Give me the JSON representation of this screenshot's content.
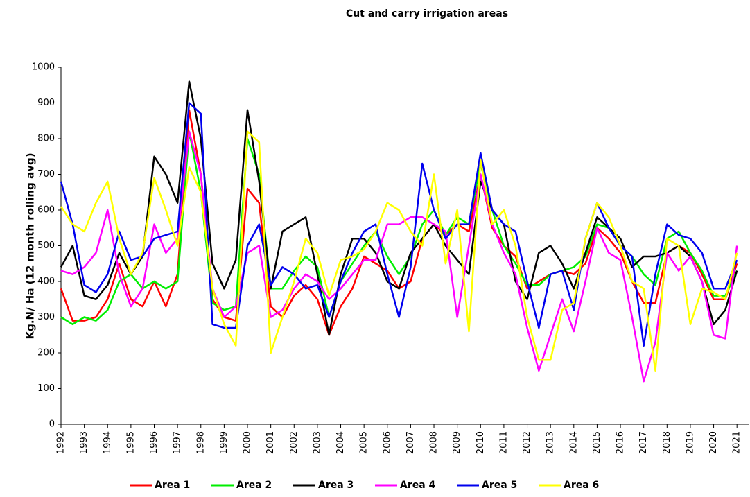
{
  "chart_data": {
    "type": "line",
    "title": "Cut and  carry irrigation areas",
    "y_label": "Kg.N/ Ha (12 month rolling avg)",
    "x": [
      1992,
      1992.5,
      1993,
      1993.5,
      1994,
      1994.5,
      1995,
      1995.5,
      1996,
      1996.5,
      1997,
      1997.5,
      1998,
      1998.5,
      1999,
      1999.5,
      2000,
      2000.5,
      2001,
      2001.5,
      2002,
      2002.5,
      2003,
      2003.5,
      2004,
      2004.5,
      2005,
      2005.5,
      2006,
      2006.5,
      2007,
      2007.5,
      2008,
      2008.5,
      2009,
      2009.5,
      2010,
      2010.5,
      2011,
      2011.5,
      2012,
      2012.5,
      2013,
      2013.5,
      2014,
      2014.5,
      2015,
      2015.5,
      2016,
      2016.5,
      2017,
      2017.5,
      2018,
      2018.5,
      2019,
      2019.5,
      2020,
      2020.5,
      2021
    ],
    "series": [
      {
        "name": "Area 1",
        "color": "#ff0000",
        "values": [
          380,
          290,
          290,
          300,
          350,
          450,
          350,
          330,
          400,
          330,
          420,
          880,
          700,
          350,
          300,
          290,
          660,
          620,
          330,
          300,
          360,
          390,
          350,
          250,
          330,
          380,
          470,
          450,
          430,
          380,
          400,
          520,
          560,
          530,
          560,
          540,
          700,
          550,
          500,
          470,
          380,
          400,
          420,
          430,
          420,
          450,
          550,
          520,
          480,
          400,
          340,
          340,
          480,
          500,
          480,
          420,
          350,
          350,
          450
        ]
      },
      {
        "name": "Area 2",
        "color": "#00ee00",
        "values": [
          300,
          280,
          300,
          290,
          320,
          400,
          420,
          380,
          400,
          380,
          400,
          820,
          650,
          340,
          320,
          330,
          800,
          700,
          380,
          380,
          430,
          470,
          440,
          300,
          400,
          450,
          500,
          540,
          470,
          420,
          470,
          560,
          600,
          530,
          580,
          560,
          730,
          600,
          500,
          450,
          390,
          390,
          420,
          430,
          440,
          470,
          560,
          550,
          500,
          470,
          420,
          390,
          520,
          540,
          480,
          430,
          360,
          360,
          430
        ]
      },
      {
        "name": "Area 3",
        "color": "#000000",
        "values": [
          440,
          500,
          360,
          350,
          390,
          480,
          420,
          470,
          750,
          700,
          620,
          960,
          800,
          450,
          380,
          460,
          880,
          680,
          380,
          540,
          560,
          580,
          420,
          250,
          420,
          520,
          520,
          480,
          400,
          380,
          480,
          520,
          560,
          500,
          460,
          420,
          680,
          600,
          560,
          400,
          350,
          480,
          500,
          450,
          380,
          480,
          580,
          550,
          520,
          440,
          470,
          470,
          480,
          500,
          470,
          400,
          280,
          320,
          430
        ]
      },
      {
        "name": "Area 4",
        "color": "#ff00ff",
        "values": [
          430,
          420,
          440,
          480,
          600,
          420,
          330,
          380,
          560,
          480,
          520,
          820,
          700,
          380,
          300,
          330,
          480,
          500,
          300,
          320,
          380,
          420,
          400,
          350,
          380,
          420,
          460,
          460,
          560,
          560,
          580,
          580,
          560,
          540,
          300,
          500,
          700,
          560,
          480,
          420,
          270,
          150,
          250,
          350,
          260,
          400,
          550,
          480,
          460,
          300,
          120,
          230,
          480,
          430,
          470,
          400,
          250,
          240,
          500
        ]
      },
      {
        "name": "Area 5",
        "color": "#0000ee",
        "values": [
          680,
          560,
          390,
          370,
          420,
          540,
          460,
          470,
          520,
          530,
          540,
          900,
          870,
          280,
          270,
          270,
          500,
          560,
          390,
          440,
          420,
          380,
          390,
          300,
          400,
          480,
          540,
          560,
          420,
          300,
          440,
          730,
          600,
          520,
          560,
          560,
          760,
          600,
          560,
          540,
          400,
          270,
          420,
          430,
          320,
          520,
          620,
          550,
          500,
          470,
          220,
          420,
          560,
          530,
          520,
          480,
          380,
          380,
          460
        ]
      },
      {
        "name": "Area 6",
        "color": "#ffff00",
        "values": [
          610,
          560,
          540,
          620,
          680,
          520,
          420,
          480,
          690,
          600,
          500,
          720,
          650,
          380,
          280,
          220,
          820,
          790,
          200,
          300,
          400,
          520,
          480,
          360,
          460,
          470,
          490,
          540,
          620,
          600,
          540,
          500,
          700,
          450,
          600,
          260,
          740,
          560,
          600,
          500,
          300,
          180,
          180,
          320,
          340,
          520,
          620,
          580,
          500,
          400,
          380,
          150,
          520,
          500,
          280,
          380,
          370,
          350,
          480
        ]
      }
    ],
    "xlim": [
      1992,
      2021.5
    ],
    "xticks": [
      1992,
      1993,
      1994,
      1995,
      1996,
      1997,
      1998,
      1999,
      2000,
      2001,
      2002,
      2003,
      2004,
      2005,
      2006,
      2007,
      2008,
      2009,
      2010,
      2011,
      2012,
      2013,
      2014,
      2015,
      2016,
      2017,
      2018,
      2019,
      2020,
      2021
    ],
    "ylim": [
      0,
      1000
    ],
    "yticks": [
      0,
      100,
      200,
      300,
      400,
      500,
      600,
      700,
      800,
      900,
      1000
    ],
    "legend": "bottom"
  }
}
